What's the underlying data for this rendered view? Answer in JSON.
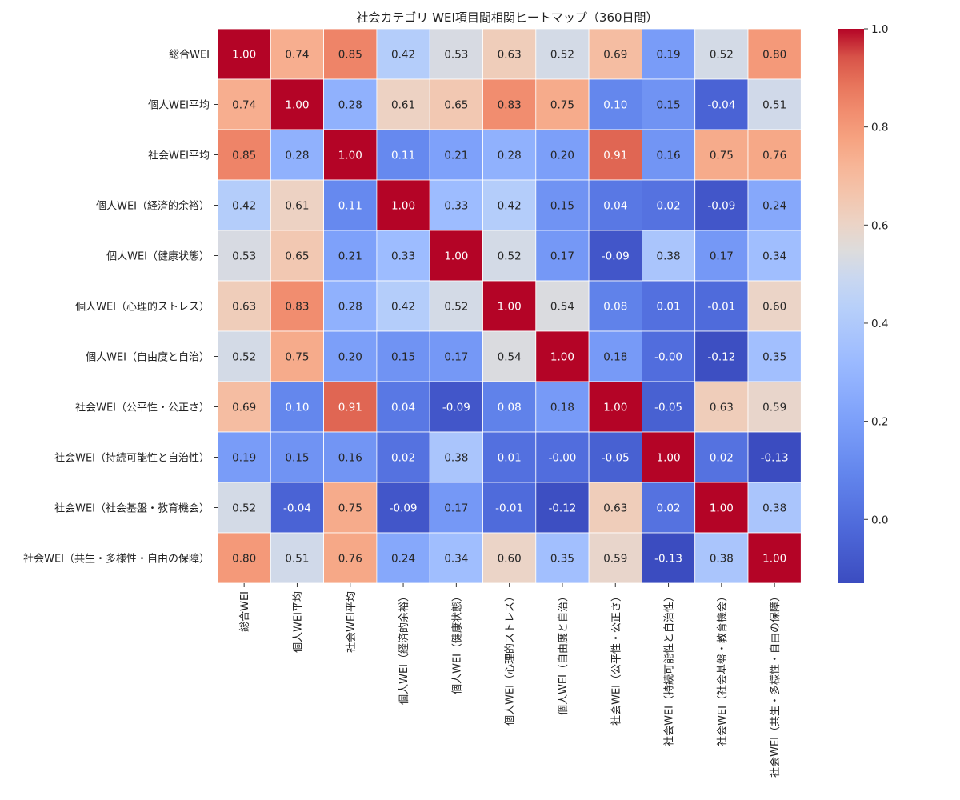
{
  "chart_data": {
    "type": "heatmap",
    "title": "社会カテゴリ WEI項目間相関ヒートマップ（360日間）",
    "labels": [
      "総合WEI",
      "個人WEI平均",
      "社会WEI平均",
      "個人WEI（経済的余裕）",
      "個人WEI（健康状態）",
      "個人WEI（心理的ストレス）",
      "個人WEI（自由度と自治）",
      "社会WEI（公平性・公正さ）",
      "社会WEI（持続可能性と自治性）",
      "社会WEI（社会基盤・教育機会）",
      "社会WEI（共生・多様性・自由の保障）"
    ],
    "values": [
      [
        1.0,
        0.74,
        0.85,
        0.42,
        0.53,
        0.63,
        0.52,
        0.69,
        0.19,
        0.52,
        0.8
      ],
      [
        0.74,
        1.0,
        0.28,
        0.61,
        0.65,
        0.83,
        0.75,
        0.1,
        0.15,
        -0.04,
        0.51
      ],
      [
        0.85,
        0.28,
        1.0,
        0.11,
        0.21,
        0.28,
        0.2,
        0.91,
        0.16,
        0.75,
        0.76
      ],
      [
        0.42,
        0.61,
        0.11,
        1.0,
        0.33,
        0.42,
        0.15,
        0.04,
        0.02,
        -0.09,
        0.24
      ],
      [
        0.53,
        0.65,
        0.21,
        0.33,
        1.0,
        0.52,
        0.17,
        -0.09,
        0.38,
        0.17,
        0.34
      ],
      [
        0.63,
        0.83,
        0.28,
        0.42,
        0.52,
        1.0,
        0.54,
        0.08,
        0.01,
        -0.01,
        0.6
      ],
      [
        0.52,
        0.75,
        0.2,
        0.15,
        0.17,
        0.54,
        1.0,
        0.18,
        -0.0,
        -0.12,
        0.35
      ],
      [
        0.69,
        0.1,
        0.91,
        0.04,
        -0.09,
        0.08,
        0.18,
        1.0,
        -0.05,
        0.63,
        0.59
      ],
      [
        0.19,
        0.15,
        0.16,
        0.02,
        0.38,
        0.01,
        -0.0,
        -0.05,
        1.0,
        0.02,
        -0.13
      ],
      [
        0.52,
        -0.04,
        0.75,
        -0.09,
        0.17,
        -0.01,
        -0.12,
        0.63,
        0.02,
        1.0,
        0.38
      ],
      [
        0.8,
        0.51,
        0.76,
        0.24,
        0.34,
        0.6,
        0.35,
        0.59,
        -0.13,
        0.38,
        1.0
      ]
    ],
    "value_format": "2 decimals",
    "colormap": "coolwarm",
    "vmin": -0.13,
    "vmax": 1.0,
    "colorbar_ticks": [
      "1.0",
      "0.8",
      "0.6",
      "0.4",
      "0.2",
      "0.0"
    ],
    "colorbar_tick_values": [
      1.0,
      0.8,
      0.6,
      0.4,
      0.2,
      0.0
    ],
    "legend": "colorbar-right",
    "grid": false
  }
}
